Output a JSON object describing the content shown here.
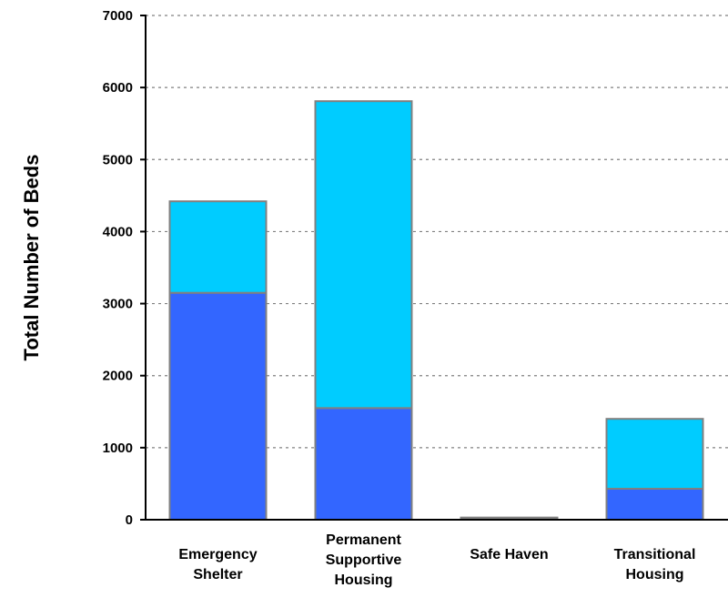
{
  "chart_data": {
    "type": "bar",
    "stacked": true,
    "categories": [
      [
        "Emergency",
        "Shelter"
      ],
      [
        "Permanent",
        "Supportive",
        "Housing"
      ],
      [
        "Safe Haven"
      ],
      [
        "Transitional",
        "Housing"
      ]
    ],
    "series": [
      {
        "values": [
          3150,
          1550,
          20,
          430
        ],
        "color": "#3366ff"
      },
      {
        "values": [
          1270,
          4260,
          10,
          970
        ],
        "color": "#00ccff"
      }
    ],
    "title": "",
    "xlabel": "",
    "ylabel": "Total Number of Beds",
    "ylim": [
      0,
      7000
    ],
    "yticks": [
      0,
      1000,
      2000,
      3000,
      4000,
      5000,
      6000,
      7000
    ],
    "grid": "horizontal-dashed",
    "legend": "none",
    "bar_border_color": "#808080",
    "grid_color": "#808080"
  }
}
